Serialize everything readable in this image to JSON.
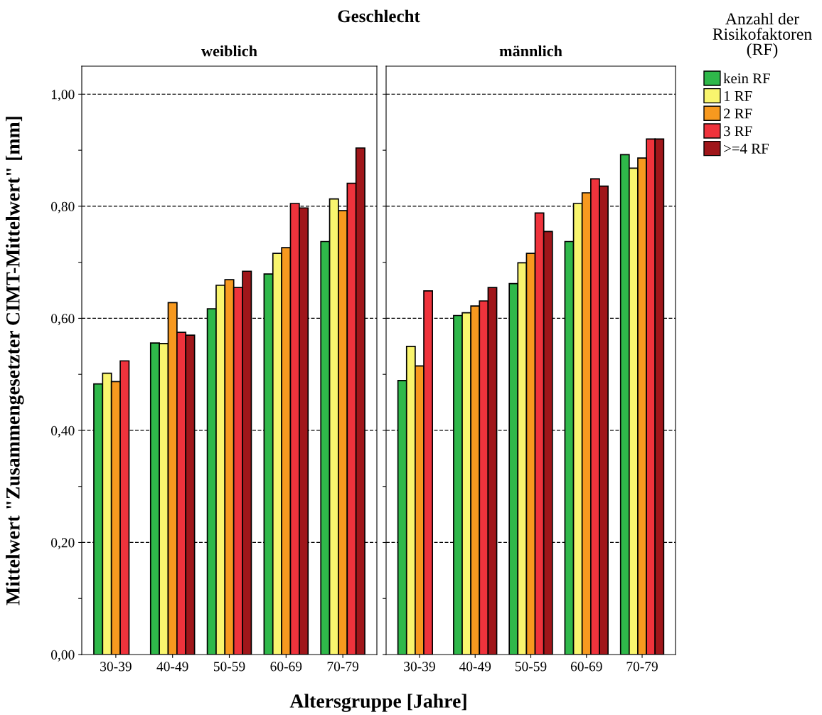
{
  "chart_data": [
    {
      "type": "bar",
      "title": "weiblich",
      "ylabel": "Mittelwert \"Zusammengesetzter CIMT-Mittelwert\" [mm]",
      "xlabel": "Altersgruppe [Jahre]",
      "annotations": [
        "Geschlecht"
      ],
      "categories": [
        "30-39",
        "40-49",
        "50-59",
        "60-69",
        "70-79"
      ],
      "series": [
        {
          "color": "#2fb84a",
          "values": [
            0.483,
            0.556,
            0.617,
            0.679,
            0.737
          ]
        },
        {
          "color": "#f9f56e",
          "values": [
            0.502,
            0.555,
            0.659,
            0.716,
            0.813
          ]
        },
        {
          "color": "#f7991f",
          "values": [
            0.487,
            0.628,
            0.669,
            0.726,
            0.792
          ]
        },
        {
          "color": "#ef333c",
          "values": [
            0.524,
            0.575,
            0.655,
            0.805,
            0.841
          ]
        },
        {
          "color": "#a0161a",
          "values": [
            null,
            0.57,
            0.684,
            0.797,
            0.904
          ]
        }
      ],
      "ylim": [
        0,
        1.05
      ],
      "yticks": [
        {
          "value": 0,
          "label": "0,00"
        },
        {
          "value": 0.1,
          "label": null
        },
        {
          "value": 0.2,
          "label": "0,20"
        },
        {
          "value": 0.3,
          "label": null
        },
        {
          "value": 0.4,
          "label": "0,40"
        },
        {
          "value": 0.5,
          "label": null
        },
        {
          "value": 0.6,
          "label": "0,60"
        },
        {
          "value": 0.7,
          "label": null
        },
        {
          "value": 0.8,
          "label": "0,80"
        },
        {
          "value": 0.9,
          "label": null
        },
        {
          "value": 1.0,
          "label": "1,00"
        }
      ],
      "grid": "y",
      "legend": false
    },
    {
      "type": "bar",
      "title": "männlich",
      "legend_title": "Anzahl der\nRisikofaktoren\n(RF)",
      "categories": [
        "30-39",
        "40-49",
        "50-59",
        "60-69",
        "70-79"
      ],
      "series": [
        {
          "name": "kein RF",
          "color": "#2fb84a",
          "values": [
            0.489,
            0.605,
            0.662,
            0.737,
            0.892
          ]
        },
        {
          "name": "1 RF",
          "color": "#f9f56e",
          "values": [
            0.55,
            0.61,
            0.699,
            0.805,
            0.868
          ]
        },
        {
          "name": "2 RF",
          "color": "#f7991f",
          "values": [
            0.515,
            0.622,
            0.716,
            0.824,
            0.886
          ]
        },
        {
          "name": "3 RF",
          "color": "#ef333c",
          "values": [
            0.649,
            0.631,
            0.788,
            0.849,
            0.92
          ]
        },
        {
          "name": ">=4 RF",
          "color": "#a0161a",
          "values": [
            null,
            0.655,
            0.755,
            0.836,
            0.92
          ]
        }
      ],
      "ylim": [
        0,
        1.05
      ],
      "yticks": [
        0,
        {
          "value": 0.1,
          "label": null
        },
        0.2,
        {
          "value": 0.3,
          "label": null
        },
        0.4,
        {
          "value": 0.5,
          "label": null
        },
        0.6,
        {
          "value": 0.7,
          "label": null
        },
        0.8,
        {
          "value": 0.9,
          "label": null
        },
        1.0
      ],
      "grid": "y",
      "legend": "right",
      "tick_labels": "x"
    }
  ]
}
